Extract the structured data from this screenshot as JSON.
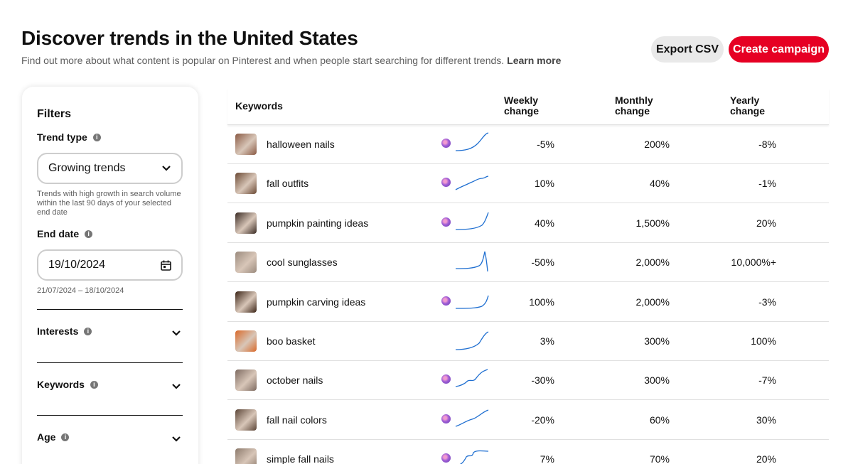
{
  "header": {
    "title": "Discover trends in the United States",
    "subtitle": "Find out more about what content is popular on Pinterest and when people start searching for different trends.",
    "learn_more": "Learn more",
    "export_label": "Export CSV",
    "create_label": "Create campaign"
  },
  "filters": {
    "heading": "Filters",
    "trend_type_label": "Trend type",
    "trend_type_value": "Growing trends",
    "trend_type_help": "Trends with high growth in search volume within the last 90 days of your selected end date",
    "end_date_label": "End date",
    "end_date_value": "19/10/2024",
    "date_range": "21/07/2024 – 18/10/2024",
    "interests_label": "Interests",
    "keywords_label": "Keywords",
    "age_label": "Age"
  },
  "table": {
    "col_keywords": "Keywords",
    "col_weekly_1": "Weekly",
    "col_weekly_2": "change",
    "col_monthly_1": "Monthly",
    "col_monthly_2": "change",
    "col_yearly_1": "Yearly",
    "col_yearly_2": "change",
    "rows": [
      {
        "keyword": "halloween nails",
        "weekly": "-5%",
        "monthly": "200%",
        "yearly": "-8%",
        "badge": true
      },
      {
        "keyword": "fall outfits",
        "weekly": "10%",
        "monthly": "40%",
        "yearly": "-1%",
        "badge": true
      },
      {
        "keyword": "pumpkin painting ideas",
        "weekly": "40%",
        "monthly": "1,500%",
        "yearly": "20%",
        "badge": true
      },
      {
        "keyword": "cool sunglasses",
        "weekly": "-50%",
        "monthly": "2,000%",
        "yearly": "10,000%+",
        "badge": false
      },
      {
        "keyword": "pumpkin carving ideas",
        "weekly": "100%",
        "monthly": "2,000%",
        "yearly": "-3%",
        "badge": true
      },
      {
        "keyword": "boo basket",
        "weekly": "3%",
        "monthly": "300%",
        "yearly": "100%",
        "badge": false
      },
      {
        "keyword": "october nails",
        "weekly": "-30%",
        "monthly": "300%",
        "yearly": "-7%",
        "badge": true
      },
      {
        "keyword": "fall nail colors",
        "weekly": "-20%",
        "monthly": "60%",
        "yearly": "30%",
        "badge": true
      },
      {
        "keyword": "simple fall nails",
        "weekly": "7%",
        "monthly": "70%",
        "yearly": "20%",
        "badge": true
      }
    ]
  },
  "colors": {
    "accent": "#e60023",
    "spark": "#1f6fd1",
    "thumbs": [
      "#8a5a44",
      "#6b4a35",
      "#3a2b24",
      "#9b8b7e",
      "#3b2416",
      "#d96a2b",
      "#7d6a60",
      "#5c4638",
      "#8c7a6c"
    ]
  }
}
